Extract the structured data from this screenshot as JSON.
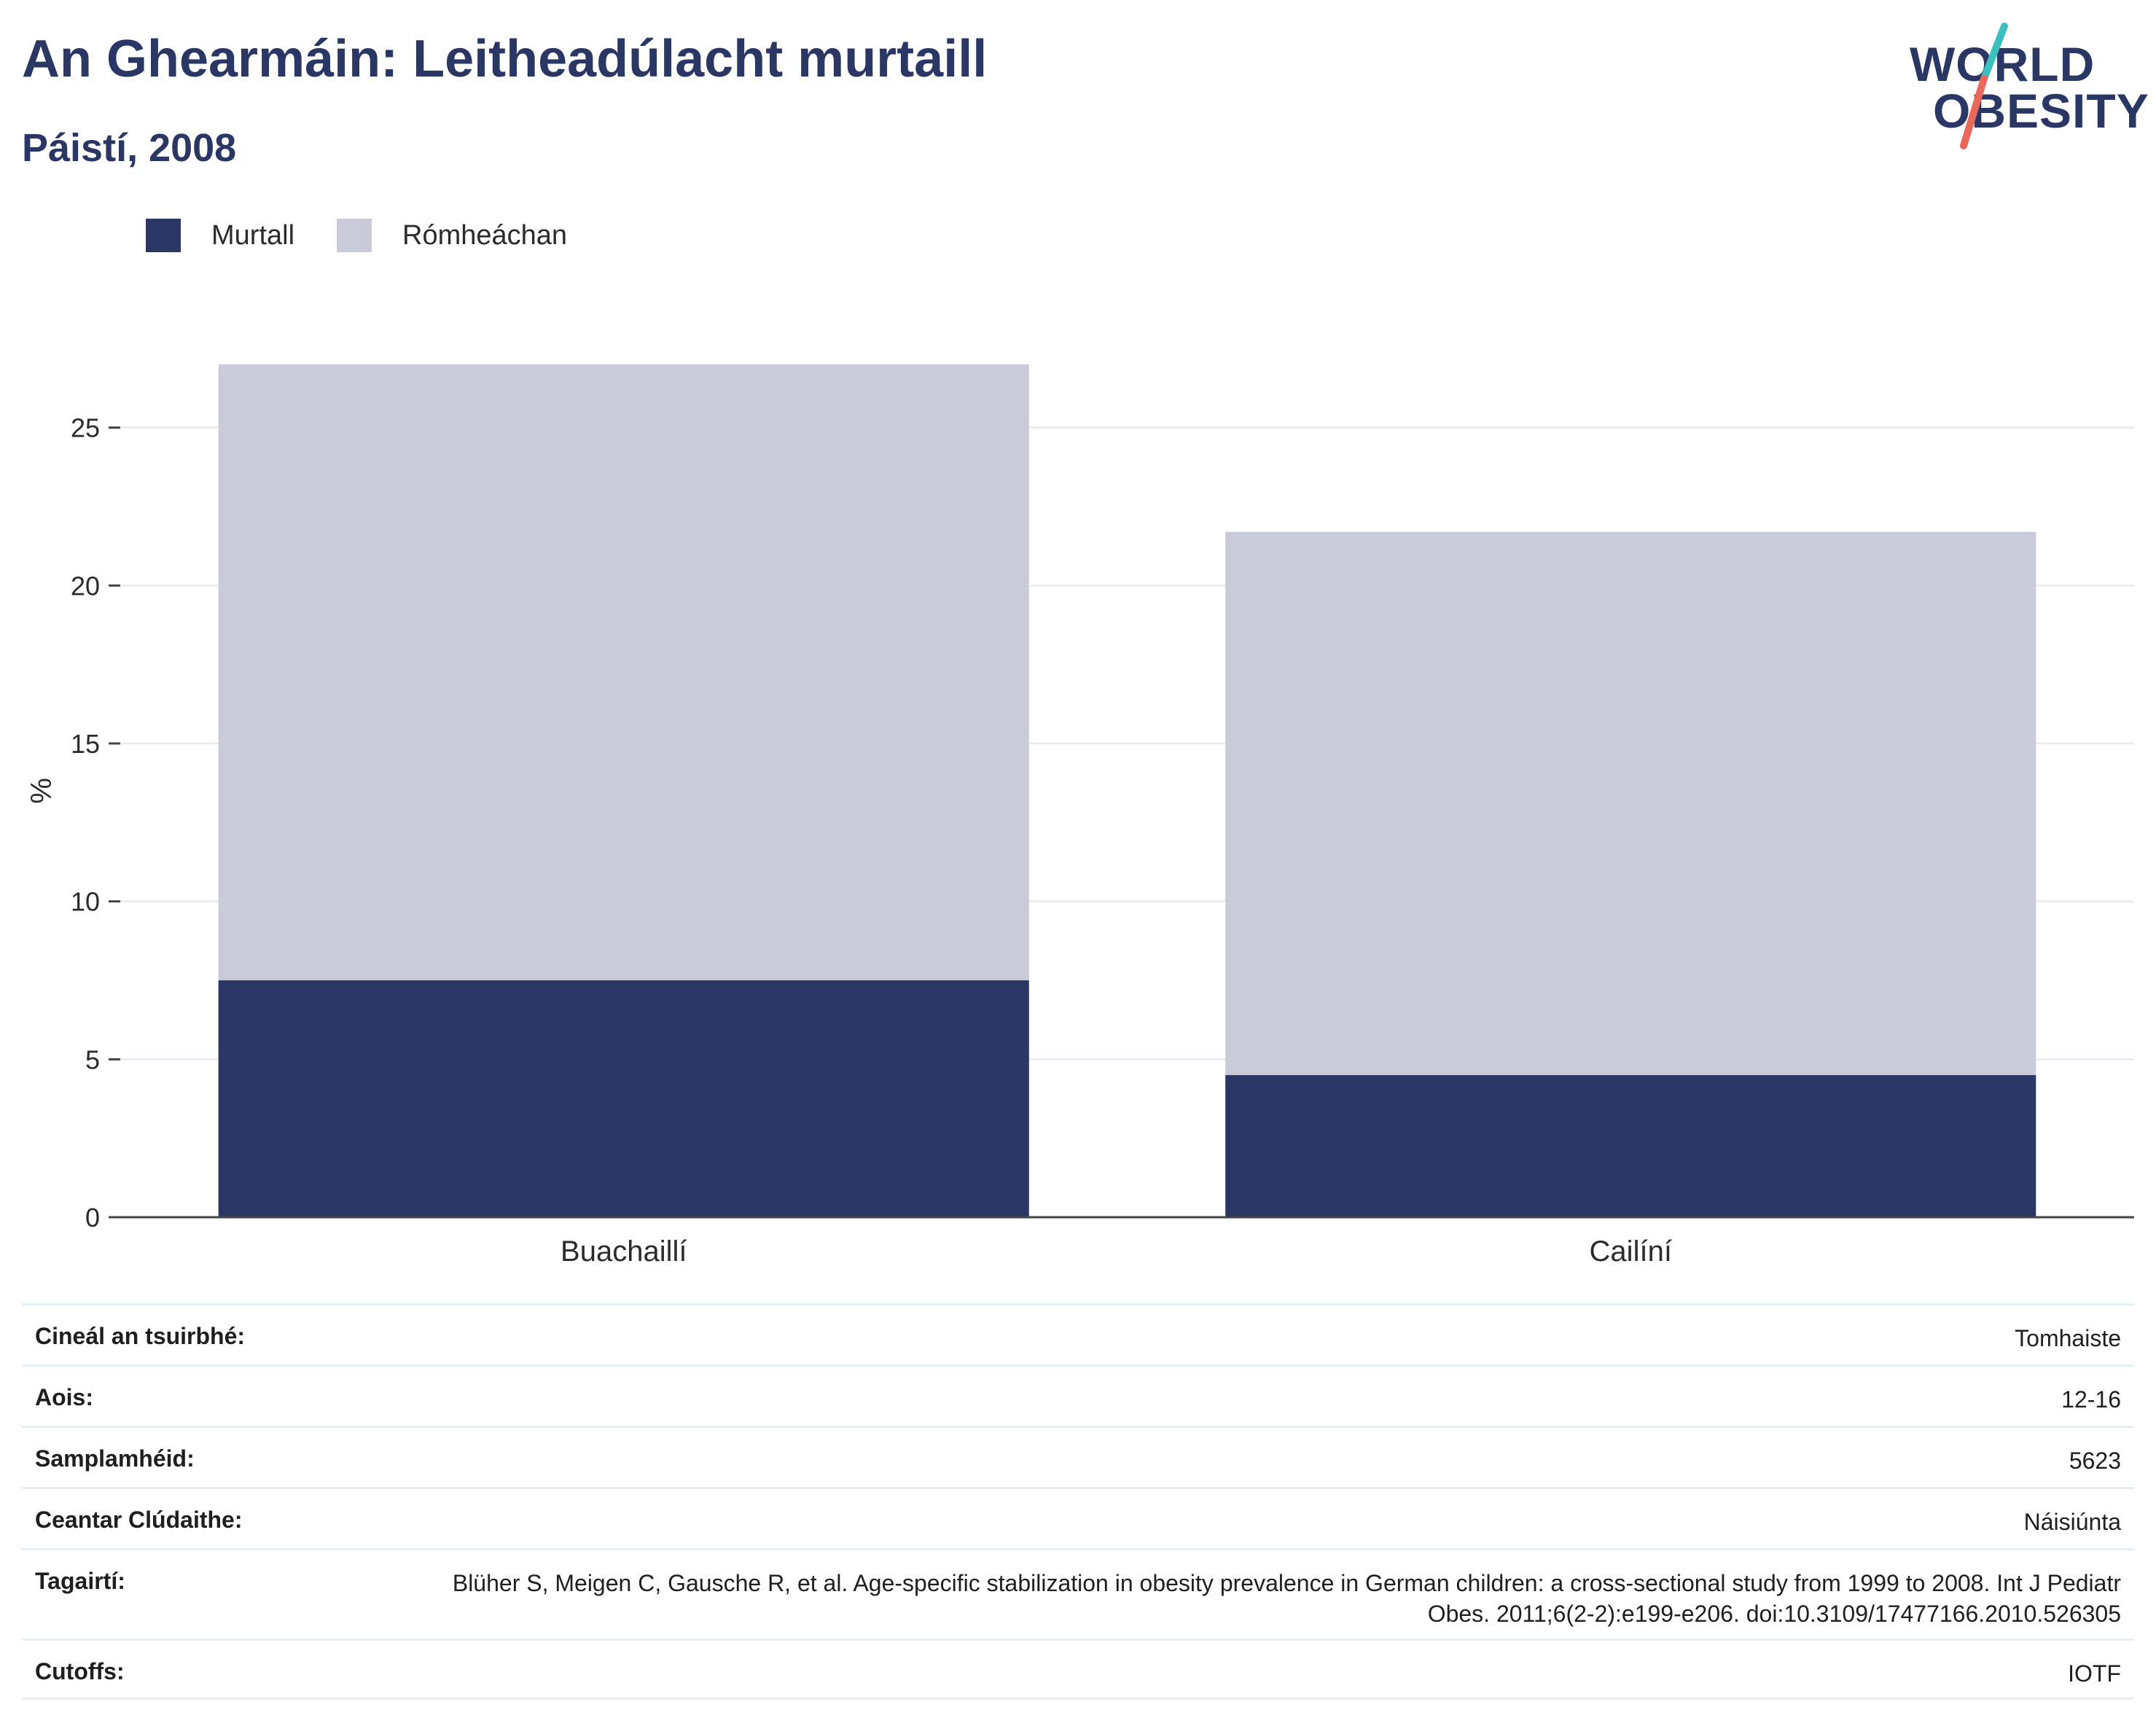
{
  "header": {
    "title": "An Ghearmáin: Leitheadúlacht murtaill",
    "subtitle": "Páistí, 2008"
  },
  "logo": {
    "line1": "WORLD",
    "line2": "OBESITY",
    "slash_colors": [
      "#3bbfbf",
      "#e8685a"
    ]
  },
  "legend": [
    {
      "label": "Murtall",
      "color": "#2a3764"
    },
    {
      "label": "Rómheáchan",
      "color": "#c9ccd8"
    }
  ],
  "chart_data": {
    "type": "bar",
    "stacked": true,
    "categories": [
      "Buachaillí",
      "Cailíní"
    ],
    "series": [
      {
        "name": "Murtall",
        "color": "#2a3764",
        "values": [
          7.5,
          4.5
        ]
      },
      {
        "name": "Rómheáchan",
        "color": "#c9ccd8",
        "values": [
          19.5,
          17.2
        ]
      }
    ],
    "ylabel": "%",
    "ylim": [
      0,
      27
    ],
    "yticks": [
      0,
      5,
      10,
      15,
      20,
      25
    ],
    "grid": true,
    "legend_position": "top-left"
  },
  "info": [
    {
      "key": "Cineál an tsuirbhé:",
      "value": "Tomhaiste"
    },
    {
      "key": "Aois:",
      "value": "12-16"
    },
    {
      "key": "Samplamhéid:",
      "value": "5623"
    },
    {
      "key": "Ceantar Clúdaithe:",
      "value": "Náisiúnta"
    },
    {
      "key": "Tagairtí:",
      "value": "Blüher S, Meigen C, Gausche R, et al. Age-specific stabilization in obesity prevalence in German children: a cross-sectional study from 1999 to 2008. Int J Pediatr Obes. 2011;6(2-2):e199-e206. doi:10.3109/17477166.2010.526305"
    },
    {
      "key": "Cutoffs:",
      "value": "IOTF"
    }
  ]
}
